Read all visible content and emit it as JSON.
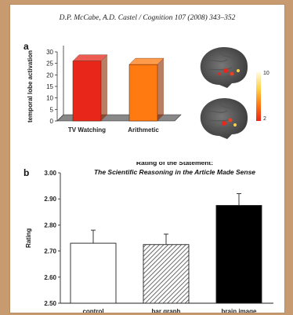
{
  "header": "D.P. McCabe, A.D. Castel / Cognition 107 (2008) 343–352",
  "panel_a": {
    "label": "a",
    "colorbar_max": "10",
    "colorbar_min": "2"
  },
  "panel_b": {
    "label": "b"
  },
  "chart_data": [
    {
      "type": "bar",
      "title": "",
      "xlabel": "",
      "ylabel": "temporal lobe activation",
      "categories": [
        "TV Watching",
        "Arithmetic"
      ],
      "values": [
        26,
        24.5
      ],
      "ylim": [
        0,
        30
      ],
      "yticks": [
        "0",
        "5",
        "10",
        "15",
        "20",
        "25",
        "30"
      ],
      "colors": [
        "#e8261a",
        "#ff7a10"
      ],
      "grid": false
    },
    {
      "type": "bar",
      "title": "Rating of the Statement:",
      "subtitle": "The Scientific Reasoning in the Article Made Sense",
      "xlabel": "",
      "ylabel": "Rating",
      "categories": [
        "control",
        "bar graph",
        "brain image"
      ],
      "values": [
        2.73,
        2.725,
        2.875
      ],
      "errors": [
        0.05,
        0.04,
        0.045
      ],
      "ylim": [
        2.5,
        3.0
      ],
      "yticks": [
        "2.50",
        "2.60",
        "2.70",
        "2.80",
        "2.90",
        "3.00"
      ],
      "fills": [
        "white",
        "hatched",
        "black"
      ],
      "grid": false
    }
  ]
}
